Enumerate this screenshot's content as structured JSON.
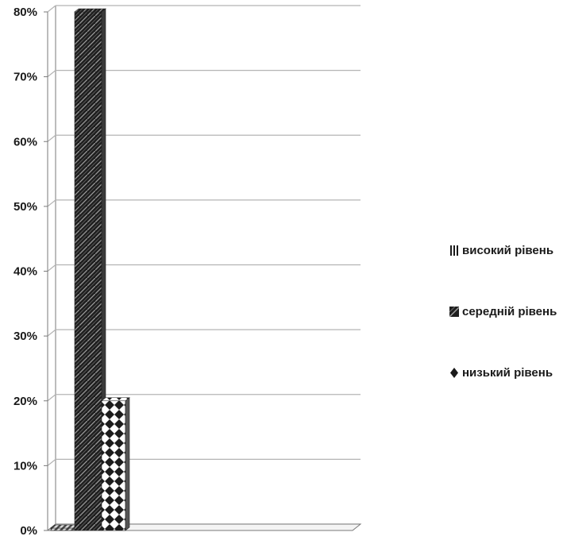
{
  "chart_data": {
    "type": "bar",
    "title": "",
    "xlabel": "",
    "ylabel": "",
    "categories": [
      ""
    ],
    "series": [
      {
        "name": "високий рівень",
        "values": [
          0
        ]
      },
      {
        "name": "середній рівень",
        "values": [
          80
        ]
      },
      {
        "name": "низький рівень",
        "values": [
          20
        ]
      }
    ],
    "yticks": [
      "0%",
      "10%",
      "20%",
      "30%",
      "40%",
      "50%",
      "60%",
      "70%",
      "80%"
    ],
    "ylim": [
      0,
      80
    ],
    "unit": "%",
    "grid": true,
    "three_d": true,
    "legend_position": "right"
  },
  "colors": {
    "grid": "#b4b4b4",
    "axis": "#7a7a7a",
    "high": "#4a4a4a",
    "medium": "#1e1e1e",
    "low": "#1c1c1c",
    "background": "#ffffff"
  },
  "legend_icons": [
    "vertical-stripes-icon",
    "diagonal-weave-icon",
    "diamond-icon"
  ]
}
